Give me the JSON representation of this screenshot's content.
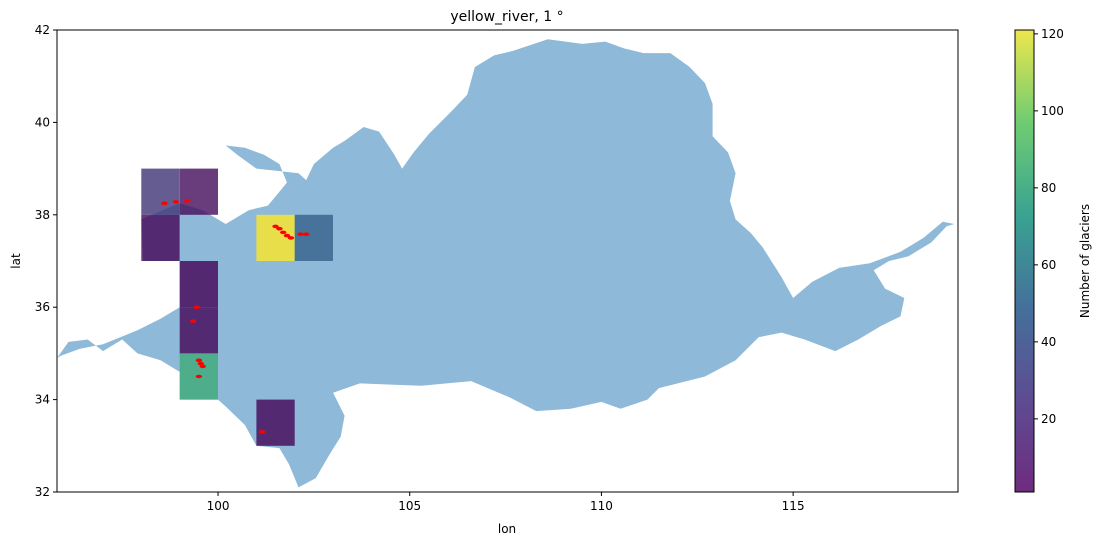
{
  "chart_data": {
    "type": "heatmap",
    "title": "yellow_river, 1 °",
    "xlabel": "lon",
    "ylabel": "lat",
    "xlim": [
      95.8,
      119.3
    ],
    "ylim": [
      32,
      42
    ],
    "xticks": [
      100,
      105,
      110,
      115
    ],
    "yticks": [
      32,
      34,
      36,
      38,
      40,
      42
    ],
    "grid": false,
    "colorbar": {
      "label": "Number of glaciers",
      "range": [
        1,
        121
      ],
      "ticks": [
        20,
        40,
        60,
        80,
        100,
        120
      ],
      "colormap": "viridis"
    },
    "cell_size_deg": 1,
    "cells": [
      {
        "lon": 98,
        "lat": 38,
        "count": 20
      },
      {
        "lon": 99,
        "lat": 38,
        "count": 5
      },
      {
        "lon": 98,
        "lat": 37,
        "count": 3
      },
      {
        "lon": 99,
        "lat": 37,
        "count": 0
      },
      {
        "lon": 99,
        "lat": 36,
        "count": 2
      },
      {
        "lon": 99,
        "lat": 35,
        "count": 3
      },
      {
        "lon": 99,
        "lat": 34,
        "count": 75
      },
      {
        "lon": 101,
        "lat": 37,
        "count": 121
      },
      {
        "lon": 102,
        "lat": 37,
        "count": 38
      },
      {
        "lon": 101,
        "lat": 33,
        "count": 3
      }
    ],
    "basin_color": "#8fb9d8",
    "glacier_color": "#ff0000",
    "basin_outline": [
      [
        95.8,
        34.9
      ],
      [
        96.1,
        35.25
      ],
      [
        96.6,
        35.3
      ],
      [
        97.0,
        35.05
      ],
      [
        97.5,
        35.3
      ],
      [
        97.9,
        35.0
      ],
      [
        98.5,
        34.85
      ],
      [
        99.0,
        34.6
      ],
      [
        99.0,
        34.0
      ],
      [
        100.0,
        34.0
      ],
      [
        100.2,
        33.85
      ],
      [
        100.7,
        33.45
      ],
      [
        101.0,
        33.0
      ],
      [
        101.6,
        32.95
      ],
      [
        101.85,
        32.6
      ],
      [
        102.1,
        32.1
      ],
      [
        102.55,
        32.3
      ],
      [
        102.9,
        32.8
      ],
      [
        103.2,
        33.2
      ],
      [
        103.3,
        33.65
      ],
      [
        103.0,
        34.15
      ],
      [
        103.7,
        34.35
      ],
      [
        105.3,
        34.3
      ],
      [
        106.6,
        34.4
      ],
      [
        107.6,
        34.05
      ],
      [
        108.3,
        33.75
      ],
      [
        109.2,
        33.8
      ],
      [
        110.0,
        33.95
      ],
      [
        110.5,
        33.8
      ],
      [
        111.2,
        34.0
      ],
      [
        111.5,
        34.25
      ],
      [
        112.7,
        34.5
      ],
      [
        113.5,
        34.85
      ],
      [
        114.1,
        35.35
      ],
      [
        114.7,
        35.45
      ],
      [
        115.3,
        35.3
      ],
      [
        116.1,
        35.05
      ],
      [
        116.7,
        35.3
      ],
      [
        117.3,
        35.6
      ],
      [
        117.8,
        35.8
      ],
      [
        117.9,
        36.2
      ],
      [
        117.4,
        36.4
      ],
      [
        117.1,
        36.8
      ],
      [
        117.5,
        37.0
      ],
      [
        118.0,
        37.1
      ],
      [
        118.6,
        37.4
      ],
      [
        119.0,
        37.75
      ],
      [
        119.2,
        37.8
      ],
      [
        118.9,
        37.85
      ],
      [
        118.4,
        37.5
      ],
      [
        117.8,
        37.2
      ],
      [
        117.0,
        36.95
      ],
      [
        116.2,
        36.85
      ],
      [
        115.5,
        36.55
      ],
      [
        115.0,
        36.2
      ],
      [
        114.7,
        36.65
      ],
      [
        114.2,
        37.3
      ],
      [
        113.9,
        37.6
      ],
      [
        113.5,
        37.9
      ],
      [
        113.35,
        38.3
      ],
      [
        113.5,
        38.9
      ],
      [
        113.3,
        39.35
      ],
      [
        112.9,
        39.7
      ],
      [
        112.9,
        40.4
      ],
      [
        112.7,
        40.85
      ],
      [
        112.3,
        41.2
      ],
      [
        111.8,
        41.5
      ],
      [
        111.1,
        41.5
      ],
      [
        110.6,
        41.6
      ],
      [
        110.1,
        41.75
      ],
      [
        109.5,
        41.7
      ],
      [
        108.6,
        41.8
      ],
      [
        107.7,
        41.55
      ],
      [
        107.2,
        41.45
      ],
      [
        106.7,
        41.2
      ],
      [
        106.5,
        40.6
      ],
      [
        106.1,
        40.25
      ],
      [
        105.5,
        39.75
      ],
      [
        105.1,
        39.35
      ],
      [
        104.8,
        39.0
      ],
      [
        104.6,
        39.3
      ],
      [
        104.2,
        39.8
      ],
      [
        103.8,
        39.9
      ],
      [
        103.3,
        39.6
      ],
      [
        103.0,
        39.45
      ],
      [
        102.5,
        39.1
      ],
      [
        102.3,
        38.75
      ],
      [
        102.1,
        38.9
      ],
      [
        101.55,
        38.95
      ],
      [
        101.0,
        39.0
      ],
      [
        100.5,
        39.3
      ],
      [
        100.2,
        39.5
      ],
      [
        100.7,
        39.45
      ],
      [
        101.2,
        39.3
      ],
      [
        101.6,
        39.1
      ],
      [
        101.8,
        38.7
      ],
      [
        101.6,
        38.5
      ],
      [
        101.3,
        38.2
      ],
      [
        100.8,
        38.1
      ],
      [
        100.2,
        37.8
      ],
      [
        99.6,
        38.1
      ],
      [
        99.0,
        38.25
      ],
      [
        98.55,
        38.1
      ],
      [
        98.0,
        37.9
      ],
      [
        98.05,
        37.0
      ],
      [
        99.0,
        37.0
      ],
      [
        99.0,
        36.0
      ],
      [
        98.5,
        35.75
      ],
      [
        97.9,
        35.5
      ],
      [
        97.0,
        35.2
      ],
      [
        96.4,
        35.1
      ],
      [
        95.9,
        34.95
      ]
    ],
    "glacier_points": [
      [
        98.6,
        38.25
      ],
      [
        98.9,
        38.28
      ],
      [
        99.2,
        38.3
      ],
      [
        101.5,
        37.75
      ],
      [
        101.6,
        37.7
      ],
      [
        101.7,
        37.62
      ],
      [
        101.8,
        37.55
      ],
      [
        101.9,
        37.5
      ],
      [
        102.15,
        37.58
      ],
      [
        102.3,
        37.58
      ],
      [
        99.45,
        36.0
      ],
      [
        99.35,
        35.7
      ],
      [
        99.5,
        34.85
      ],
      [
        99.55,
        34.78
      ],
      [
        99.6,
        34.72
      ],
      [
        99.5,
        34.5
      ],
      [
        101.15,
        33.3
      ]
    ]
  }
}
